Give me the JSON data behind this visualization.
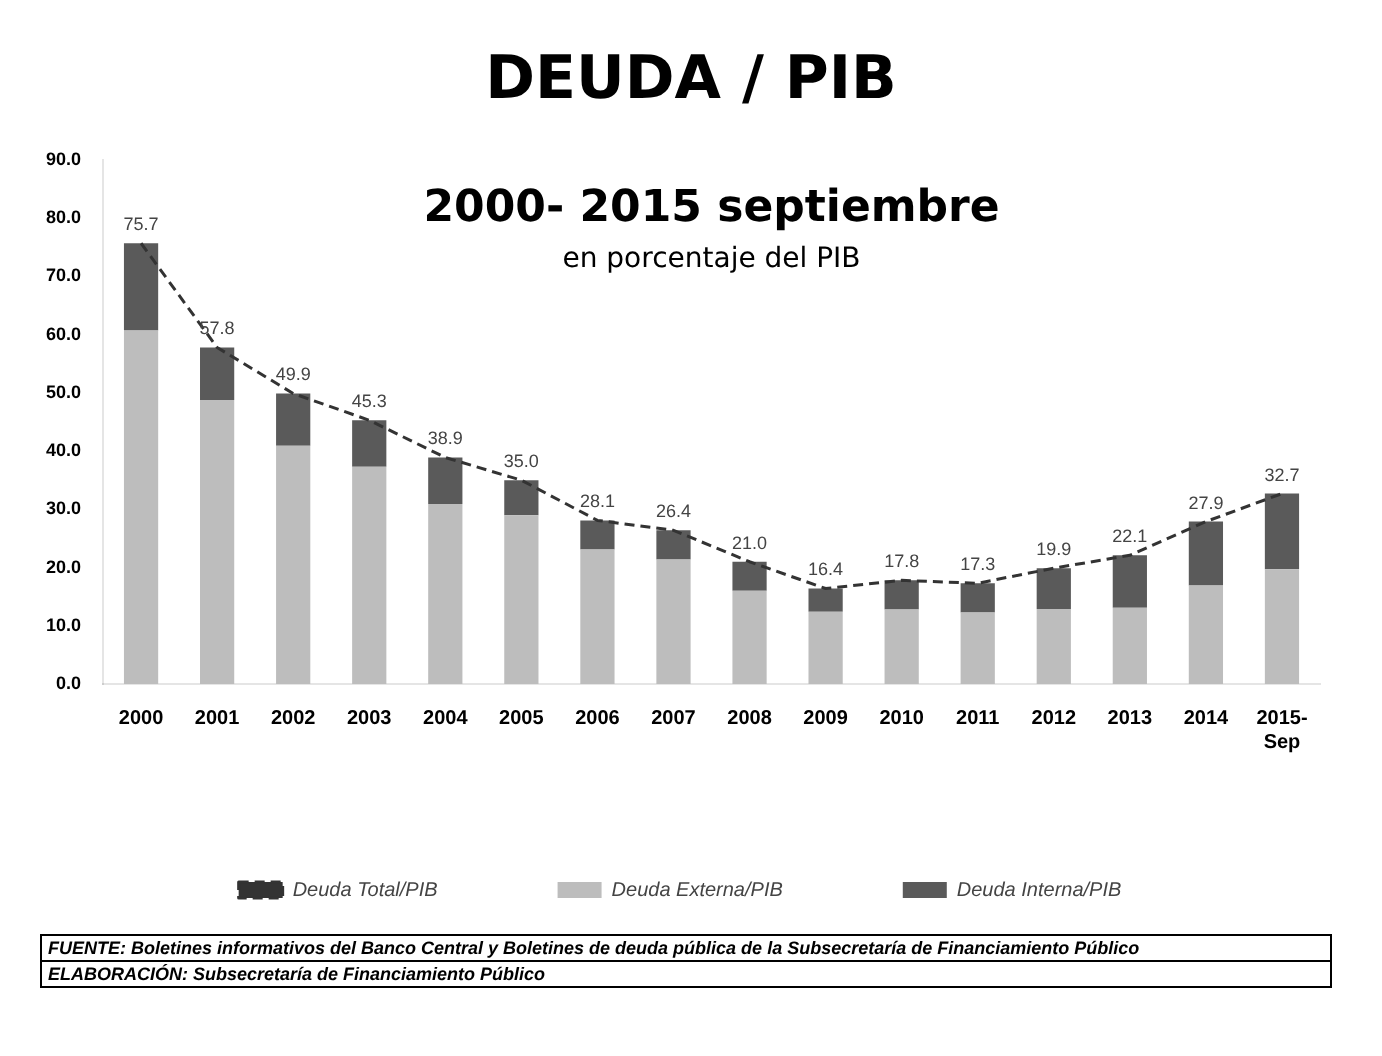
{
  "chart_data": {
    "type": "bar",
    "title": "DEUDA / PIB",
    "subtitle": "2000- 2015 septiembre",
    "annotations": [
      "en porcentaje del PIB",
      "FUENTE: Boletines informativos del Banco Central y Boletines de deuda pública de la Subsecretaría de Financiamiento Público",
      "ELABORACIÓN: Subsecretaría de Financiamiento Público"
    ],
    "categories": [
      "2000",
      "2001",
      "2002",
      "2003",
      "2004",
      "2005",
      "2006",
      "2007",
      "2008",
      "2009",
      "2010",
      "2011",
      "2012",
      "2013",
      "2014",
      "2015-\nSep"
    ],
    "stacked": true,
    "series": [
      {
        "name": "Deuda Externa/PIB",
        "color": "#bdbdbd",
        "values": [
          60.7,
          48.8,
          40.9,
          37.3,
          30.9,
          29.0,
          23.1,
          21.4,
          16.0,
          12.4,
          12.8,
          12.3,
          12.9,
          13.1,
          16.9,
          19.7
        ]
      },
      {
        "name": "Deuda Interna/PIB",
        "color": "#5a5a5a",
        "values": [
          15,
          9,
          9,
          8,
          8,
          6,
          5,
          5,
          5,
          4,
          5,
          5,
          7,
          9,
          11,
          13
        ]
      },
      {
        "name": "Deuda Total/PIB",
        "type": "line",
        "color": "#333333",
        "line_style": "dashed",
        "marker": "none",
        "values": [
          75.7,
          57.8,
          49.9,
          45.3,
          38.9,
          35.0,
          28.1,
          26.4,
          21.0,
          16.4,
          17.8,
          17.3,
          19.9,
          22.1,
          27.9,
          32.7
        ],
        "value_labels": [
          "75.7",
          "57.8",
          "49.9",
          "45.3",
          "38.9",
          "35.0",
          "28.1",
          "26.4",
          "21.0",
          "16.4",
          "17.8",
          "17.3",
          "19.9",
          "22.1",
          "27.9",
          "32.7"
        ]
      }
    ],
    "ylim": [
      0,
      90
    ],
    "yticks": [
      {
        "value": 0,
        "label": "0.0"
      },
      {
        "value": 10,
        "label": "10.0"
      },
      {
        "value": 20,
        "label": "20.0"
      },
      {
        "value": 30,
        "label": "30.0"
      },
      {
        "value": 40,
        "label": "40.0"
      },
      {
        "value": 50,
        "label": "50.0"
      },
      {
        "value": 60,
        "label": "60.0"
      },
      {
        "value": 70,
        "label": "70.0"
      },
      {
        "value": 80,
        "label": "80.0"
      },
      {
        "value": 90,
        "label": "90.0"
      }
    ],
    "grid": false,
    "legend": "bottom"
  }
}
